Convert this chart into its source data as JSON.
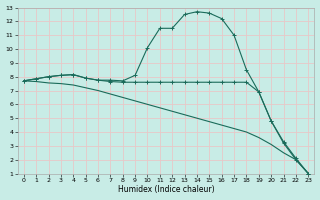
{
  "xlabel": "Humidex (Indice chaleur)",
  "bg_color": "#c8ece6",
  "grid_color": "#e8c8c8",
  "line_color": "#1a6b5a",
  "xlim": [
    -0.5,
    23.5
  ],
  "ylim": [
    1,
    13
  ],
  "xticks": [
    0,
    1,
    2,
    3,
    4,
    5,
    6,
    7,
    8,
    9,
    10,
    11,
    12,
    13,
    14,
    15,
    16,
    17,
    18,
    19,
    20,
    21,
    22,
    23
  ],
  "yticks": [
    1,
    2,
    3,
    4,
    5,
    6,
    7,
    8,
    9,
    10,
    11,
    12,
    13
  ],
  "line1_x": [
    0,
    1,
    2,
    3,
    4,
    5,
    6,
    7,
    8,
    9,
    10,
    11,
    12,
    13,
    14,
    15,
    16,
    17,
    18,
    19,
    20,
    21,
    22,
    23
  ],
  "line1_y": [
    7.7,
    7.85,
    8.0,
    8.1,
    8.15,
    7.9,
    7.75,
    7.75,
    7.7,
    8.1,
    10.1,
    11.5,
    11.5,
    12.5,
    12.7,
    12.6,
    12.2,
    11.0,
    8.5,
    6.9,
    4.8,
    3.2,
    2.0,
    1.0
  ],
  "line2_x": [
    0,
    1,
    2,
    3,
    4,
    5,
    6,
    7,
    8,
    9,
    10,
    11,
    12,
    13,
    14,
    15,
    16,
    17,
    18,
    19,
    20,
    21,
    22,
    23
  ],
  "line2_y": [
    7.7,
    7.85,
    8.0,
    8.1,
    8.15,
    7.9,
    7.75,
    7.65,
    7.6,
    7.6,
    7.6,
    7.6,
    7.6,
    7.6,
    7.6,
    7.6,
    7.6,
    7.6,
    7.6,
    6.9,
    4.8,
    3.3,
    2.1,
    1.0
  ],
  "line3_x": [
    0,
    1,
    2,
    3,
    4,
    5,
    6,
    7,
    8,
    9,
    10,
    11,
    12,
    13,
    14,
    15,
    16,
    17,
    18,
    19,
    20,
    21,
    22,
    23
  ],
  "line3_y": [
    7.7,
    7.65,
    7.55,
    7.5,
    7.4,
    7.2,
    7.0,
    6.75,
    6.5,
    6.25,
    6.0,
    5.75,
    5.5,
    5.25,
    5.0,
    4.75,
    4.5,
    4.25,
    4.0,
    3.6,
    3.1,
    2.5,
    2.0,
    1.0
  ]
}
